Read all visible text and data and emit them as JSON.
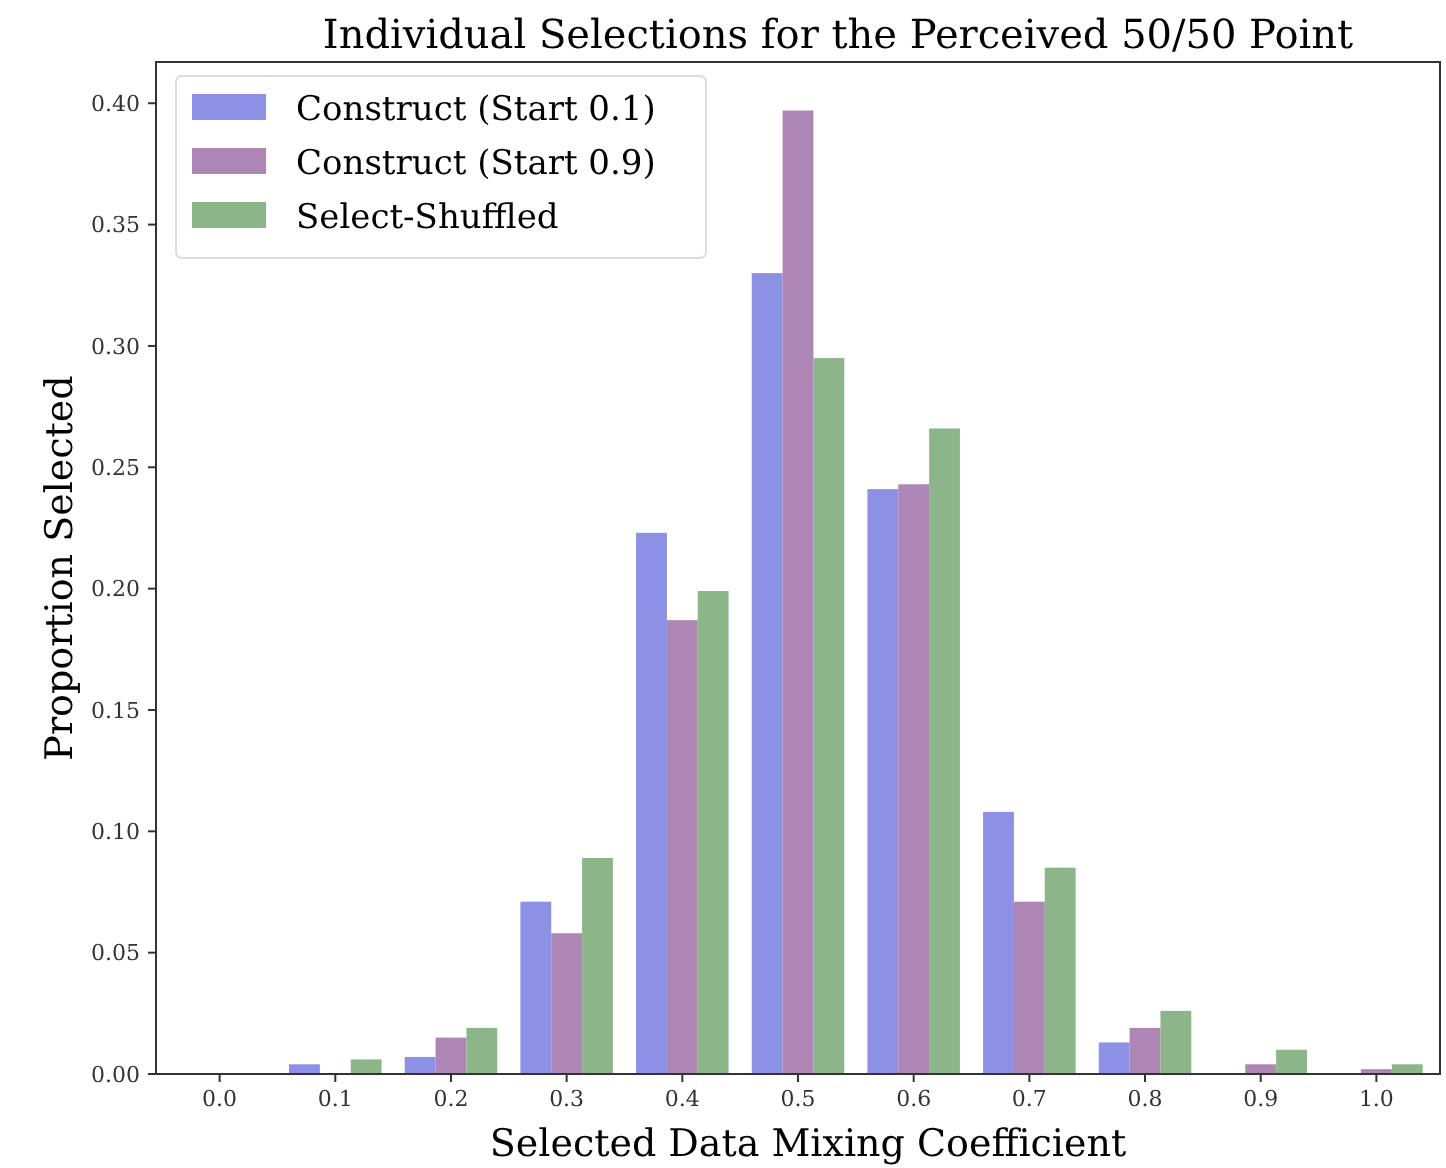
{
  "chart_data": {
    "type": "bar",
    "title": "Individual Selections for the Perceived 50/50 Point",
    "xlabel": "Selected Data Mixing Coefficient",
    "ylabel": "Proportion Selected",
    "categories": [
      "0.0",
      "0.1",
      "0.2",
      "0.3",
      "0.4",
      "0.5",
      "0.6",
      "0.7",
      "0.8",
      "0.9",
      "1.0"
    ],
    "series": [
      {
        "name": "Construct (Start 0.1)",
        "color": "#8c91e6",
        "values": [
          null,
          0.004,
          0.007,
          0.071,
          0.223,
          0.33,
          0.241,
          0.108,
          0.013,
          0.0,
          null
        ]
      },
      {
        "name": "Construct (Start 0.9)",
        "color": "#ae86b5",
        "values": [
          null,
          null,
          0.015,
          0.058,
          0.187,
          0.397,
          0.243,
          0.071,
          0.019,
          0.004,
          0.002
        ]
      },
      {
        "name": "Select-Shuffled",
        "color": "#8db58a",
        "values": [
          null,
          0.006,
          0.019,
          0.089,
          0.199,
          0.295,
          0.266,
          0.085,
          0.026,
          0.01,
          0.004
        ]
      }
    ],
    "ylim": [
      0,
      0.417
    ],
    "yticks": [
      {
        "value": 0,
        "label": "0.00"
      },
      {
        "value": 0.05,
        "label": "0.05"
      },
      {
        "value": 0.1,
        "label": "0.10"
      },
      {
        "value": 0.15,
        "label": "0.15"
      },
      {
        "value": 0.2,
        "label": "0.20"
      },
      {
        "value": 0.25,
        "label": "0.25"
      },
      {
        "value": 0.3,
        "label": "0.30"
      },
      {
        "value": 0.35,
        "label": "0.35"
      },
      {
        "value": 0.4,
        "label": "0.40"
      }
    ],
    "legend": "top left",
    "grid": false
  }
}
